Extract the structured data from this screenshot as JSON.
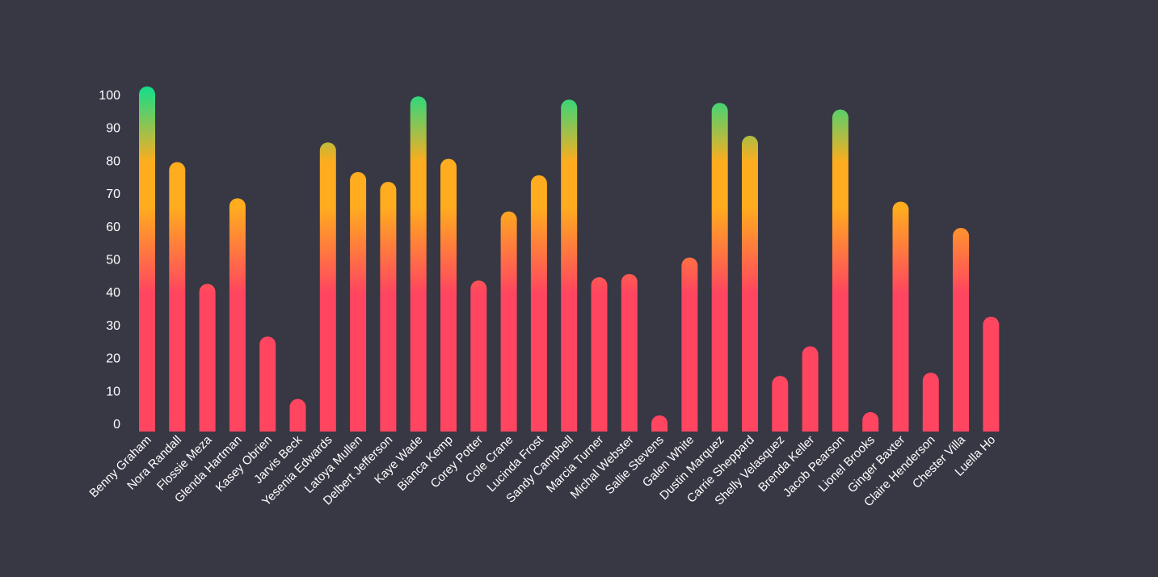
{
  "chart_data": {
    "type": "bar",
    "title": "",
    "xlabel": "",
    "ylabel": "",
    "ylim": [
      0,
      100
    ],
    "yticks": [
      0,
      10,
      20,
      30,
      40,
      50,
      60,
      70,
      80,
      90,
      100
    ],
    "grid": false,
    "legend": "none",
    "colors": {
      "background": "#383744",
      "low": "#ff4560",
      "mid": "#ffac1e",
      "high": "#12de8b",
      "text": "#ffffff"
    },
    "categories": [
      "Benny Graham",
      "Nora Randall",
      "Flossie Meza",
      "Glenda Hartman",
      "Kasey Obrien",
      "Jarvis Beck",
      "Yesenia Edwards",
      "Latoya Mullen",
      "Delbert Jefferson",
      "Kaye Wade",
      "Bianca Kemp",
      "Corey Potter",
      "Cole Crane",
      "Lucinda Frost",
      "Sandy Campbell",
      "Marcia Turner",
      "Michal Webster",
      "Sallie Stevens",
      "Galen White",
      "Dustin Marquez",
      "Carrie Sheppard",
      "Shelly Velasquez",
      "Brenda Keller",
      "Jacob Pearson",
      "Lionel Brooks",
      "Ginger Baxter",
      "Claire Henderson",
      "Chester Villa",
      "Luella Ho"
    ],
    "values": [
      100,
      77,
      40,
      66,
      24,
      5,
      83,
      74,
      71,
      97,
      78,
      41,
      62,
      73,
      96,
      42,
      43,
      0,
      48,
      95,
      85,
      12,
      21,
      93,
      1,
      65,
      13,
      57,
      30
    ]
  }
}
